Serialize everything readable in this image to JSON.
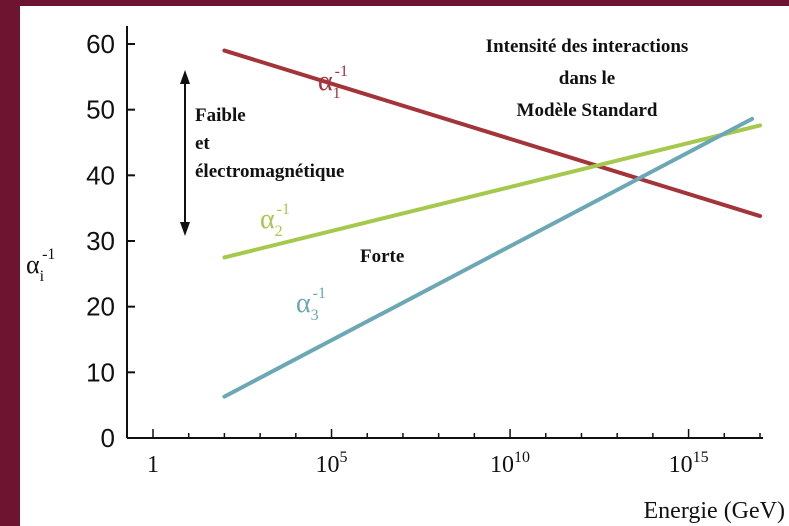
{
  "chart_data": {
    "type": "line",
    "title": [
      "Intensité des interactions",
      "dans le",
      "Modèle Standard"
    ],
    "xlabel": "Energie (GeV)",
    "ylabel": "α",
    "ylabel_sub": "i",
    "ylabel_sup": "-1",
    "x_scale": "log10",
    "xlim": [
      1,
      1e+17
    ],
    "ylim": [
      0,
      62
    ],
    "x_ticks": [
      {
        "value": 1,
        "base": "1",
        "exp": ""
      },
      {
        "value": 100000,
        "base": "10",
        "exp": "5"
      },
      {
        "value": 10000000000,
        "base": "10",
        "exp": "10"
      },
      {
        "value": 1000000000000000.0,
        "base": "10",
        "exp": "15"
      }
    ],
    "y_ticks": [
      "0",
      "10",
      "20",
      "30",
      "40",
      "50",
      "60"
    ],
    "grid": false,
    "series": [
      {
        "name": "α",
        "sub": "1",
        "sup": "-1",
        "color": "#a3343a",
        "x": [
          100,
          1e+17
        ],
        "y": [
          59,
          33.8
        ]
      },
      {
        "name": "α",
        "sub": "2",
        "sup": "-1",
        "color": "#a6c84c",
        "x": [
          100,
          1e+17
        ],
        "y": [
          27.5,
          47.6
        ]
      },
      {
        "name": "α",
        "sub": "3",
        "sup": "-1",
        "color": "#6ba7b5",
        "x": [
          100,
          6e+16
        ],
        "y": [
          6.3,
          48.6
        ]
      }
    ],
    "annotations": [
      {
        "text": [
          "Faible",
          "et",
          "électromagnétique"
        ]
      },
      {
        "text": [
          "Forte"
        ]
      }
    ]
  }
}
